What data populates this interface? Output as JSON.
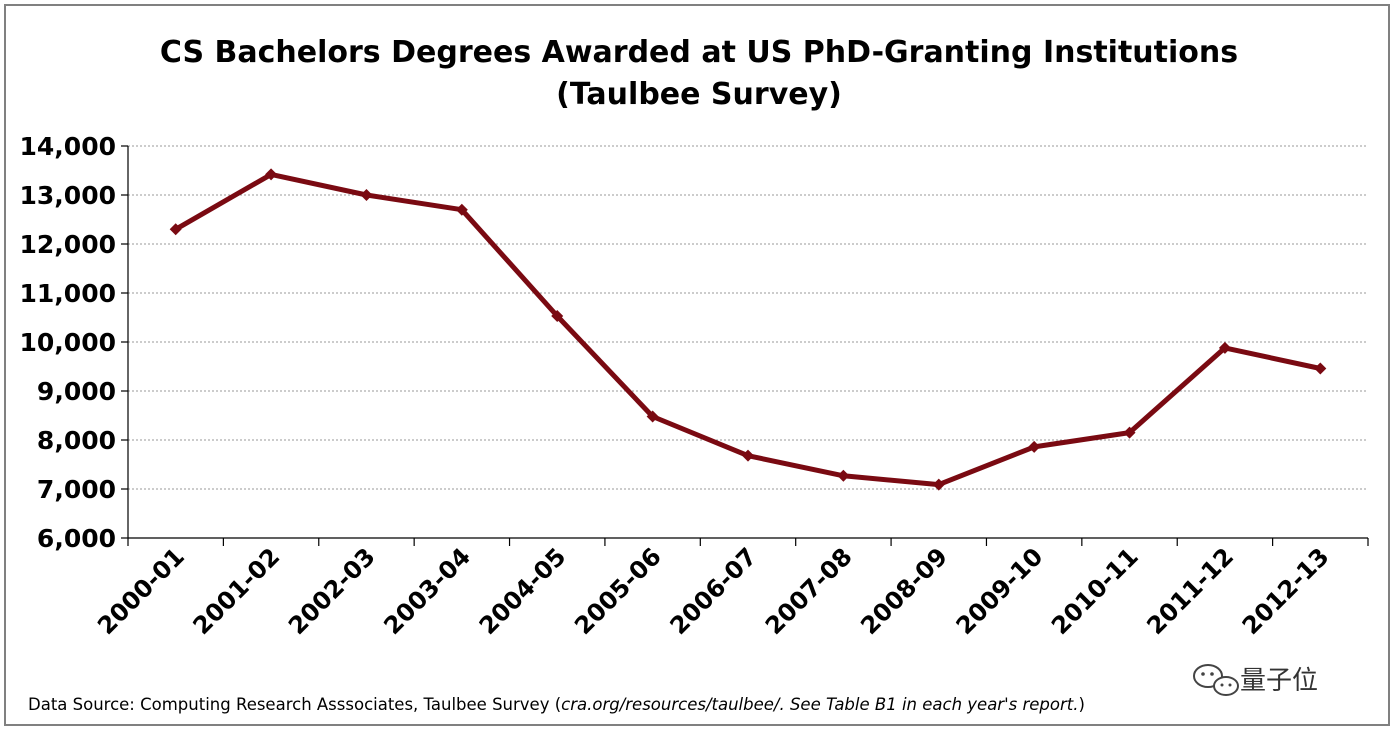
{
  "chart_data": {
    "type": "line",
    "title": "CS Bachelors Degrees Awarded at US PhD-Granting Institutions",
    "subtitle": "(Taulbee Survey)",
    "xlabel": "",
    "ylabel": "",
    "ylim": [
      6000,
      14000
    ],
    "yticks": [
      "6,000",
      "7,000",
      "8,000",
      "9,000",
      "10,000",
      "11,000",
      "12,000",
      "13,000",
      "14,000"
    ],
    "categories": [
      "2000-01",
      "2001-02",
      "2002-03",
      "2003-04",
      "2004-05",
      "2005-06",
      "2006-07",
      "2007-08",
      "2008-09",
      "2009-10",
      "2010-11",
      "2011-12",
      "2012-13"
    ],
    "series": [
      {
        "values": [
          12300,
          13420,
          13000,
          12700,
          10530,
          8480,
          7680,
          7270,
          7090,
          7860,
          8150,
          9880,
          9460
        ]
      }
    ],
    "series_color": "#7a0a12",
    "grid": true,
    "legend": "none"
  },
  "source": {
    "prefix": "Data Source: Computing Research Asssociates, Taulbee Survey (",
    "italic": "cra.org/resources/taulbee/.  See Table B1 in each year's report.",
    "suffix": ")"
  },
  "watermark": {
    "icon": "wechat-icon",
    "text": "量子位"
  }
}
